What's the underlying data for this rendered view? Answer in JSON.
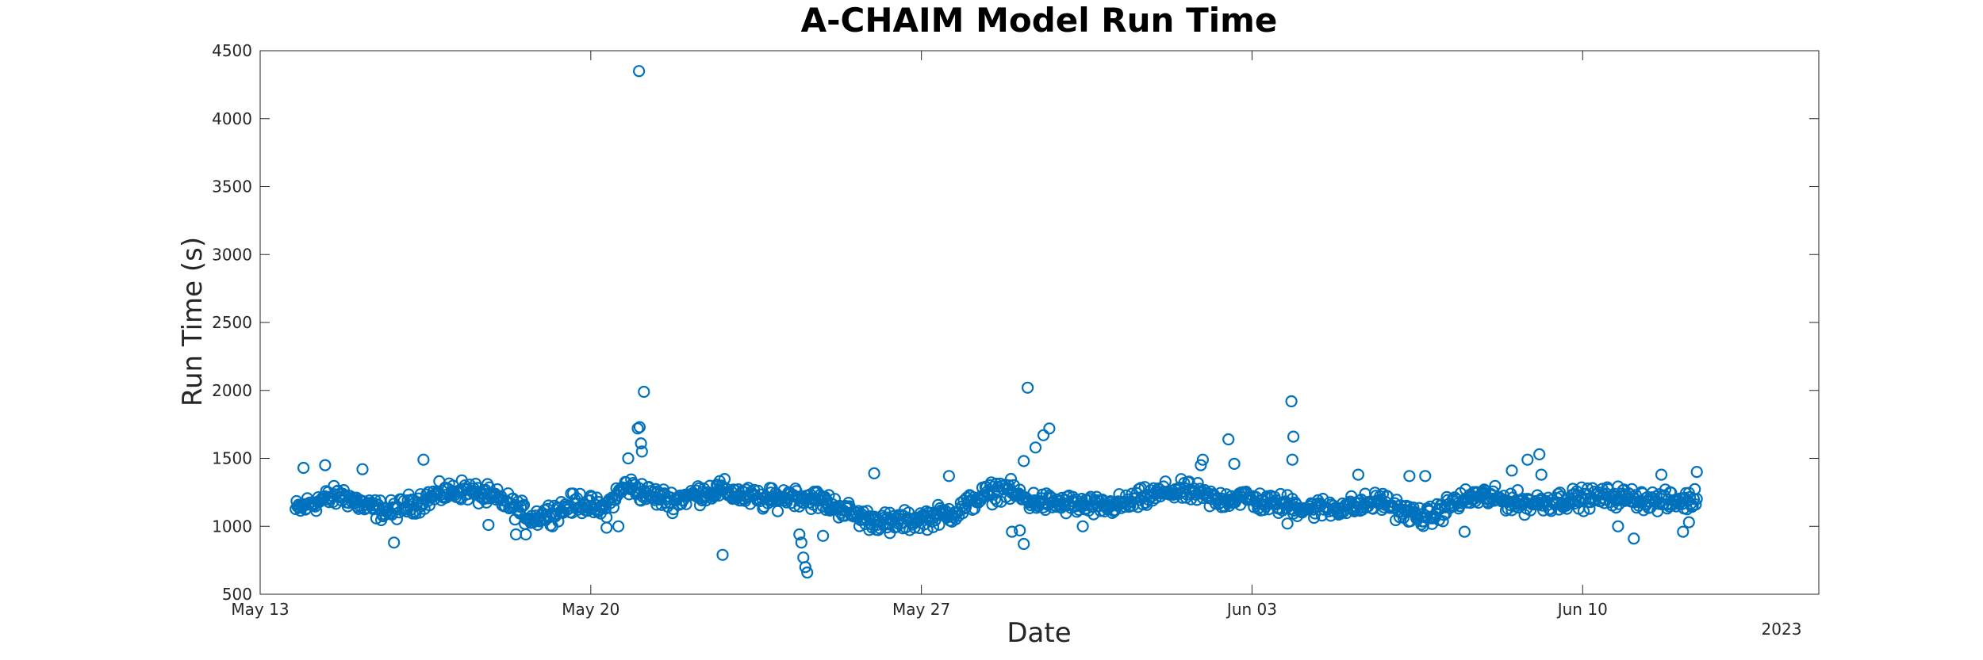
{
  "chart_data": {
    "type": "scatter",
    "title": "A-CHAIM Model Run Time",
    "xlabel": "Date",
    "ylabel": "Run Time (s)",
    "x_tick_labels": [
      "May 13",
      "May 20",
      "May 27",
      "Jun 03",
      "Jun 10"
    ],
    "x_tick_dates": [
      "2023-05-13",
      "2023-05-20",
      "2023-05-27",
      "2023-06-03",
      "2023-06-10"
    ],
    "x_secondary_label": "2023",
    "xlim": [
      "2023-05-13",
      "2023-06-15"
    ],
    "ylim": [
      500,
      4500
    ],
    "y_ticks": [
      500,
      1000,
      1500,
      2000,
      2500,
      3000,
      3500,
      4000,
      4500
    ],
    "grid": false,
    "marker": "open-circle",
    "series": [
      {
        "color": "#0072BD",
        "baseline": [
          [
            "2023-05-13T18:00",
            1120
          ],
          [
            "2023-05-14T06:00",
            1190
          ],
          [
            "2023-05-14T18:00",
            1230
          ],
          [
            "2023-05-15T06:00",
            1140
          ],
          [
            "2023-05-15T18:00",
            1110
          ],
          [
            "2023-05-16T06:00",
            1170
          ],
          [
            "2023-05-16T18:00",
            1230
          ],
          [
            "2023-05-17T06:00",
            1270
          ],
          [
            "2023-05-17T18:00",
            1230
          ],
          [
            "2023-05-18T06:00",
            1170
          ],
          [
            "2023-05-18T18:00",
            1060
          ],
          [
            "2023-05-19T06:00",
            1110
          ],
          [
            "2023-05-19T18:00",
            1180
          ],
          [
            "2023-05-20T06:00",
            1120
          ],
          [
            "2023-05-20T18:00",
            1300
          ],
          [
            "2023-05-21T06:00",
            1230
          ],
          [
            "2023-05-21T18:00",
            1190
          ],
          [
            "2023-05-22T06:00",
            1240
          ],
          [
            "2023-05-22T18:00",
            1270
          ],
          [
            "2023-05-23T06:00",
            1220
          ],
          [
            "2023-05-23T18:00",
            1190
          ],
          [
            "2023-05-24T06:00",
            1230
          ],
          [
            "2023-05-24T18:00",
            1200
          ],
          [
            "2023-05-25T06:00",
            1140
          ],
          [
            "2023-05-25T18:00",
            1060
          ],
          [
            "2023-05-26T06:00",
            1030
          ],
          [
            "2023-05-26T18:00",
            1040
          ],
          [
            "2023-05-27T06:00",
            1070
          ],
          [
            "2023-05-27T18:00",
            1110
          ],
          [
            "2023-05-28T06:00",
            1220
          ],
          [
            "2023-05-28T18:00",
            1280
          ],
          [
            "2023-05-29T06:00",
            1190
          ],
          [
            "2023-05-29T18:00",
            1170
          ],
          [
            "2023-05-30T06:00",
            1160
          ],
          [
            "2023-05-30T18:00",
            1140
          ],
          [
            "2023-05-31T06:00",
            1160
          ],
          [
            "2023-05-31T18:00",
            1210
          ],
          [
            "2023-06-01T06:00",
            1260
          ],
          [
            "2023-06-01T18:00",
            1250
          ],
          [
            "2023-06-02T06:00",
            1190
          ],
          [
            "2023-06-02T18:00",
            1220
          ],
          [
            "2023-06-03T06:00",
            1170
          ],
          [
            "2023-06-03T18:00",
            1160
          ],
          [
            "2023-06-04T06:00",
            1130
          ],
          [
            "2023-06-04T18:00",
            1140
          ],
          [
            "2023-06-05T06:00",
            1150
          ],
          [
            "2023-06-05T18:00",
            1190
          ],
          [
            "2023-06-06T06:00",
            1100
          ],
          [
            "2023-06-06T18:00",
            1060
          ],
          [
            "2023-06-07T06:00",
            1170
          ],
          [
            "2023-06-07T18:00",
            1220
          ],
          [
            "2023-06-08T06:00",
            1200
          ],
          [
            "2023-06-08T18:00",
            1170
          ],
          [
            "2023-06-09T06:00",
            1180
          ],
          [
            "2023-06-09T18:00",
            1200
          ],
          [
            "2023-06-10T06:00",
            1210
          ],
          [
            "2023-06-10T18:00",
            1220
          ],
          [
            "2023-06-11T06:00",
            1200
          ],
          [
            "2023-06-11T18:00",
            1180
          ],
          [
            "2023-06-12T06:00",
            1190
          ],
          [
            "2023-06-12T10:00",
            1200
          ]
        ],
        "range": [
          "2023-05-13T18:00",
          "2023-06-12T10:00"
        ],
        "sample_interval_hours": 0.5,
        "scatter_amplitude": 110,
        "outliers": [
          [
            "2023-05-21T00:30",
            4350
          ],
          [
            "2023-05-21T03:00",
            1990
          ],
          [
            "2023-05-20T23:50",
            1720
          ],
          [
            "2023-05-21T00:50",
            1730
          ],
          [
            "2023-05-21T01:30",
            1610
          ],
          [
            "2023-05-21T02:00",
            1550
          ],
          [
            "2023-05-20T19:00",
            1500
          ],
          [
            "2023-05-15T20:00",
            880
          ],
          [
            "2023-05-16T11:00",
            1490
          ],
          [
            "2023-05-14T09:00",
            1450
          ],
          [
            "2023-05-13T22:00",
            1430
          ],
          [
            "2023-05-15T04:00",
            1420
          ],
          [
            "2023-05-18T10:00",
            940
          ],
          [
            "2023-05-18T15:00",
            940
          ],
          [
            "2023-05-22T19:00",
            790
          ],
          [
            "2023-05-24T10:00",
            940
          ],
          [
            "2023-05-24T11:00",
            880
          ],
          [
            "2023-05-24T12:00",
            770
          ],
          [
            "2023-05-24T13:00",
            700
          ],
          [
            "2023-05-24T14:00",
            660
          ],
          [
            "2023-05-24T22:00",
            930
          ],
          [
            "2023-05-26T00:00",
            1390
          ],
          [
            "2023-05-26T08:00",
            950
          ],
          [
            "2023-05-27T14:00",
            1370
          ],
          [
            "2023-05-28T22:00",
            960
          ],
          [
            "2023-05-29T02:00",
            970
          ],
          [
            "2023-05-29T04:00",
            870
          ],
          [
            "2023-05-29T06:00",
            2020
          ],
          [
            "2023-05-29T10:00",
            1580
          ],
          [
            "2023-05-29T14:00",
            1670
          ],
          [
            "2023-05-29T17:00",
            1720
          ],
          [
            "2023-05-29T04:00",
            1480
          ],
          [
            "2023-05-30T10:00",
            1000
          ],
          [
            "2023-06-01T22:00",
            1450
          ],
          [
            "2023-06-01T23:00",
            1490
          ],
          [
            "2023-06-02T12:00",
            1640
          ],
          [
            "2023-06-02T15:00",
            1460
          ],
          [
            "2023-06-03T18:00",
            1020
          ],
          [
            "2023-06-03T20:00",
            1920
          ],
          [
            "2023-06-03T21:00",
            1660
          ],
          [
            "2023-06-03T20:30",
            1490
          ],
          [
            "2023-06-05T06:00",
            1380
          ],
          [
            "2023-06-06T08:00",
            1370
          ],
          [
            "2023-06-06T16:00",
            1370
          ],
          [
            "2023-06-07T12:00",
            960
          ],
          [
            "2023-06-07T22:00",
            1270
          ],
          [
            "2023-06-08T12:00",
            1410
          ],
          [
            "2023-06-08T20:00",
            1490
          ],
          [
            "2023-06-09T02:00",
            1530
          ],
          [
            "2023-06-09T03:00",
            1380
          ],
          [
            "2023-06-10T18:00",
            1000
          ],
          [
            "2023-06-11T02:00",
            910
          ],
          [
            "2023-06-11T16:00",
            1380
          ],
          [
            "2023-06-12T03:00",
            960
          ],
          [
            "2023-06-12T06:00",
            1030
          ],
          [
            "2023-06-12T10:00",
            1400
          ],
          [
            "2023-05-20T14:00",
            1000
          ],
          [
            "2023-05-20T08:00",
            990
          ],
          [
            "2023-05-17T20:00",
            1010
          ],
          [
            "2023-05-23T20:00",
            1280
          ]
        ]
      }
    ]
  }
}
